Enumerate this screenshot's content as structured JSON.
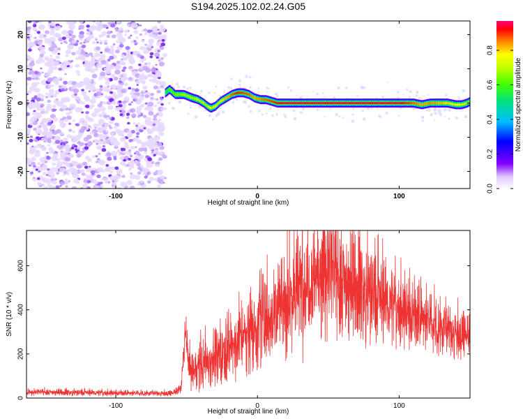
{
  "chart_data": [
    {
      "type": "heatmap",
      "title": "S194.2025.102.02.24.G05",
      "xlabel": "Height of straight line (km)",
      "ylabel": "Frequency (Hz)",
      "xlim": [
        -163,
        150
      ],
      "ylim": [
        -25,
        24
      ],
      "xticks": [
        -100,
        0,
        100
      ],
      "yticks": [
        20,
        10,
        0,
        -10,
        -20
      ],
      "colorbar": {
        "label": "Normalized spectral amplitude",
        "range": [
          0,
          0.97
        ],
        "ticks": [
          0.0,
          0.2,
          0.4,
          0.6,
          0.8
        ]
      },
      "noise_region_x": [
        -163,
        -65
      ],
      "ridge": {
        "x": [
          -65,
          -62,
          -58,
          -52,
          -46,
          -42,
          -38,
          -35,
          -33,
          -30,
          -26,
          -22,
          -18,
          -14,
          -10,
          -6,
          -2,
          2,
          6,
          10,
          14,
          20,
          40,
          60,
          80,
          100,
          110,
          116,
          122,
          128,
          134,
          140,
          144,
          148,
          150
        ],
        "freq": [
          3,
          4,
          2.5,
          2.5,
          1.5,
          1,
          0,
          -1,
          -1.5,
          -1,
          0.5,
          1.5,
          2.5,
          3,
          3,
          2.5,
          1.5,
          1,
          1,
          0.5,
          0,
          0,
          0,
          0,
          0,
          0,
          0,
          -0.5,
          0,
          0,
          0,
          -0.5,
          -0.5,
          0,
          0.5
        ],
        "amplitude": [
          0.5,
          0.6,
          0.65,
          0.7,
          0.7,
          0.72,
          0.7,
          0.72,
          0.75,
          0.78,
          0.8,
          0.85,
          0.9,
          0.95,
          0.92,
          0.9,
          0.85,
          0.88,
          0.9,
          0.92,
          0.95,
          0.97,
          0.97,
          0.97,
          0.97,
          0.97,
          0.9,
          0.85,
          0.88,
          0.85,
          0.82,
          0.8,
          0.78,
          0.7,
          0.6
        ]
      }
    },
    {
      "type": "line",
      "xlabel": "Height of straight line (km)",
      "ylabel": "SNR (10 * v/v)",
      "xlim": [
        -163,
        150
      ],
      "ylim": [
        0,
        760
      ],
      "xticks": [
        -100,
        0,
        100
      ],
      "yticks": [
        0,
        200,
        400,
        600
      ],
      "color": "#ee3333",
      "series": [
        {
          "x": [
            -163,
            -150,
            -130,
            -110,
            -90,
            -70,
            -60,
            -54,
            -52,
            -51,
            -50,
            -48,
            -45,
            -40,
            -30,
            -20,
            -10,
            0,
            10,
            20,
            30,
            40,
            45,
            50,
            55,
            60,
            70,
            80,
            90,
            100,
            110,
            120,
            130,
            140,
            150
          ],
          "mean": [
            25,
            28,
            25,
            24,
            22,
            22,
            22,
            40,
            200,
            310,
            240,
            150,
            120,
            150,
            190,
            230,
            280,
            330,
            380,
            440,
            500,
            560,
            580,
            580,
            560,
            540,
            510,
            470,
            440,
            410,
            380,
            350,
            320,
            300,
            280
          ],
          "spread": [
            12,
            12,
            12,
            12,
            10,
            10,
            10,
            20,
            70,
            70,
            80,
            80,
            80,
            90,
            110,
            120,
            140,
            160,
            180,
            200,
            210,
            220,
            230,
            240,
            230,
            220,
            200,
            180,
            160,
            140,
            130,
            110,
            100,
            90,
            80
          ]
        }
      ]
    }
  ]
}
